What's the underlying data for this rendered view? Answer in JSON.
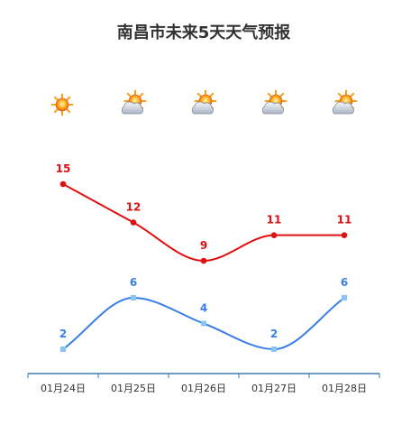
{
  "title": "南昌市未来5天天气预报",
  "chart_data": {
    "type": "line",
    "title": "南昌市未来5天天气预报",
    "xlabel": "",
    "ylabel": "",
    "categories": [
      "01月24日",
      "01月25日",
      "01月26日",
      "01月27日",
      "01月28日"
    ],
    "weather_icons": [
      "sun-icon",
      "cloudy-sun-icon",
      "cloudy-sun-icon",
      "cloudy-sun-icon",
      "cloudy-sun-icon"
    ],
    "series": [
      {
        "values": [
          15,
          12,
          9,
          11,
          11
        ],
        "color": "#e01010",
        "label_color": "#e01010",
        "marker": "circle",
        "smooth": true
      },
      {
        "values": [
          2,
          6,
          4,
          2,
          6
        ],
        "color": "#3a7fe6",
        "label_color": "#3a7fe6",
        "marker": "square",
        "marker_color": "#89c4f4",
        "smooth": true
      }
    ],
    "axis_color": "#3e7cb1",
    "grid": false,
    "y_axis_visible": false,
    "data_labels": true
  }
}
